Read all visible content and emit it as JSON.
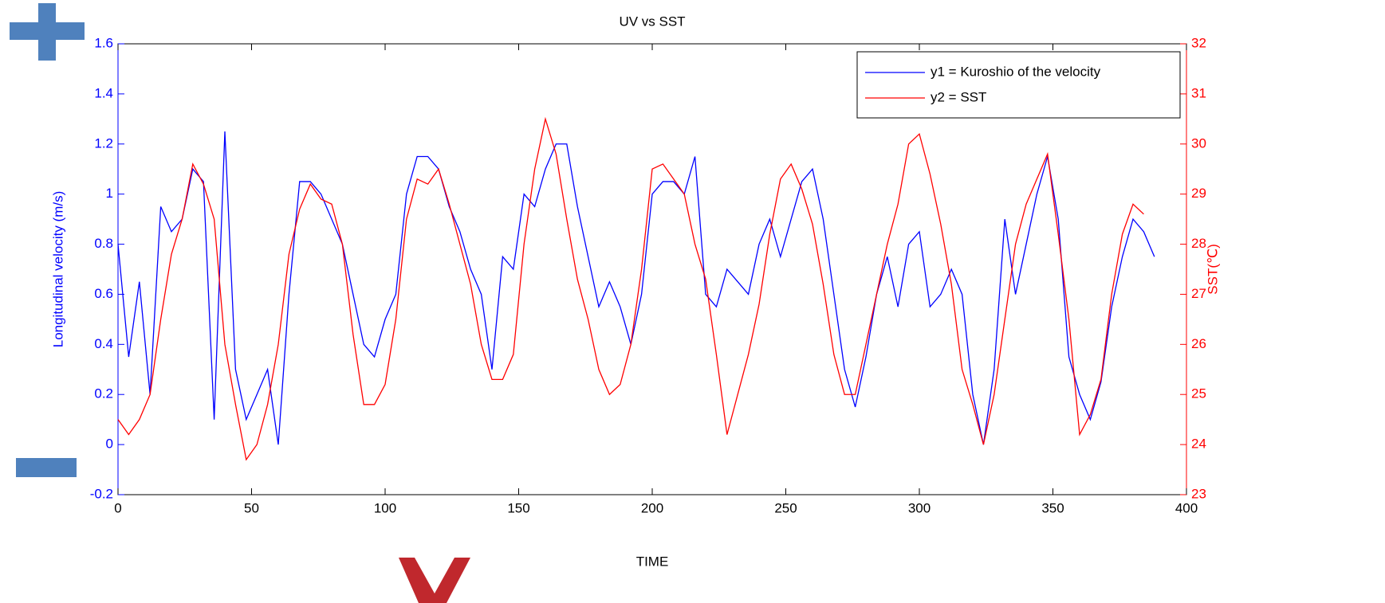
{
  "chart_data": {
    "type": "line",
    "title": "UV vs SST",
    "x_label": "TIME",
    "y_label": "Longitudinal velocity (m/s)",
    "y2_label": "SST(℃)",
    "x": [
      0,
      4,
      8,
      12,
      16,
      20,
      24,
      28,
      32,
      36,
      40,
      44,
      48,
      52,
      56,
      60,
      64,
      68,
      72,
      76,
      80,
      84,
      88,
      92,
      96,
      100,
      104,
      108,
      112,
      116,
      120,
      124,
      128,
      132,
      136,
      140,
      144,
      148,
      152,
      156,
      160,
      164,
      168,
      172,
      176,
      180,
      184,
      188,
      192,
      196,
      200,
      204,
      208,
      212,
      216,
      220,
      224,
      228,
      232,
      236,
      240,
      244,
      248,
      252,
      256,
      260,
      264,
      268,
      272,
      276,
      280,
      284,
      288,
      292,
      296,
      300,
      304,
      308,
      312,
      316,
      320,
      324,
      328,
      332,
      336,
      340,
      344,
      348,
      352,
      356,
      360,
      364,
      368,
      372,
      376,
      380,
      384,
      388
    ],
    "series": [
      {
        "name": "y1 = Kuroshio of the velocity",
        "color": "#0000ff",
        "axis": "y",
        "values": [
          0.8,
          0.35,
          0.65,
          0.2,
          0.95,
          0.85,
          0.9,
          1.1,
          1.05,
          0.1,
          1.25,
          0.3,
          0.1,
          0.2,
          0.3,
          0.0,
          0.6,
          1.05,
          1.05,
          1.0,
          0.9,
          0.8,
          0.6,
          0.4,
          0.35,
          0.5,
          0.6,
          1.0,
          1.15,
          1.15,
          1.1,
          0.95,
          0.85,
          0.7,
          0.6,
          0.3,
          0.75,
          0.7,
          1.0,
          0.95,
          1.1,
          1.2,
          1.2,
          0.95,
          0.75,
          0.55,
          0.65,
          0.55,
          0.4,
          0.6,
          1.0,
          1.05,
          1.05,
          1.0,
          1.15,
          0.6,
          0.55,
          0.7,
          0.65,
          0.6,
          0.8,
          0.9,
          0.75,
          0.9,
          1.05,
          1.1,
          0.9,
          0.6,
          0.3,
          0.15,
          0.35,
          0.6,
          0.75,
          0.55,
          0.8,
          0.85,
          0.55,
          0.6,
          0.7,
          0.6,
          0.2,
          0.0,
          0.3,
          0.9,
          0.6,
          0.8,
          1.0,
          1.15,
          0.9,
          0.35,
          0.2,
          0.1,
          0.25,
          0.55,
          0.75,
          0.9,
          0.85,
          0.75
        ]
      },
      {
        "name": "y2 = SST",
        "color": "#ff0000",
        "axis": "y2",
        "values": [
          24.5,
          24.2,
          24.5,
          25.0,
          26.5,
          27.8,
          28.5,
          29.6,
          29.2,
          28.5,
          26.0,
          24.8,
          23.7,
          24.0,
          24.8,
          26.0,
          27.8,
          28.7,
          29.2,
          28.9,
          28.8,
          28.0,
          26.2,
          24.8,
          24.8,
          25.2,
          26.5,
          28.5,
          29.3,
          29.2,
          29.5,
          28.8,
          28.0,
          27.2,
          26.0,
          25.3,
          25.3,
          25.8,
          28.0,
          29.5,
          30.5,
          29.8,
          28.5,
          27.3,
          26.5,
          25.5,
          25.0,
          25.2,
          26.0,
          27.5,
          29.5,
          29.6,
          29.3,
          29.0,
          28.0,
          27.3,
          25.8,
          24.2,
          25.0,
          25.8,
          26.8,
          28.2,
          29.3,
          29.6,
          29.1,
          28.4,
          27.2,
          25.8,
          25.0,
          25.0,
          26.0,
          27.0,
          28.0,
          28.8,
          30.0,
          30.2,
          29.4,
          28.4,
          27.2,
          25.5,
          24.8,
          24.0,
          25.0,
          26.5,
          28.0,
          28.8,
          29.3,
          29.8,
          28.2,
          26.5,
          24.2,
          24.6,
          25.3,
          27.0,
          28.2,
          28.8,
          28.6,
          null
        ]
      }
    ],
    "xlim": [
      0,
      400
    ],
    "xticks": [
      0,
      50,
      100,
      150,
      200,
      250,
      300,
      350,
      400
    ],
    "ylim": [
      -0.2,
      1.6
    ],
    "yticks": [
      -0.2,
      0,
      0.2,
      0.4,
      0.6,
      0.8,
      1,
      1.2,
      1.4,
      1.6
    ],
    "y2lim": [
      23,
      32
    ],
    "y2ticks": [
      23,
      24,
      25,
      26,
      27,
      28,
      29,
      30,
      31,
      32
    ],
    "legend": "upper right"
  }
}
